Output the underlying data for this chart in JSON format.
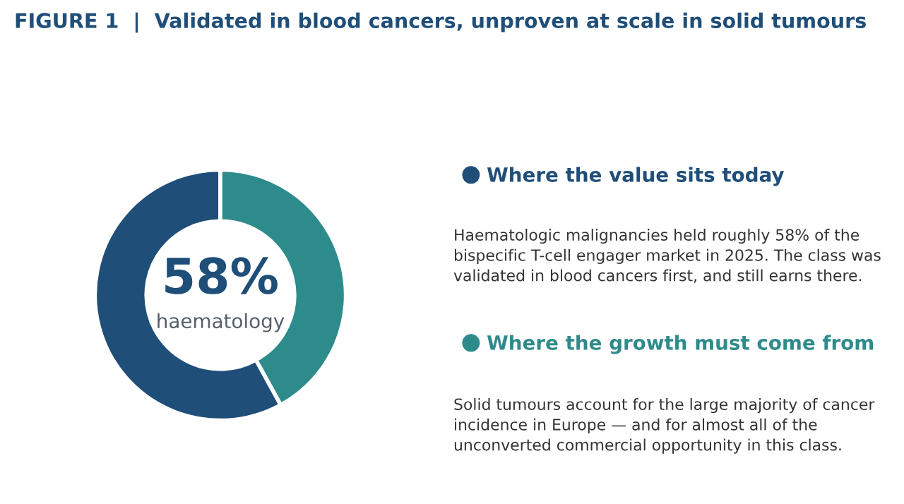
{
  "chart_data": {
    "type": "donut",
    "title": "FIGURE 1  |  Validated in blood cancers, unproven at scale in solid tumours",
    "categories": [
      "Where the value sits today",
      "Where the growth must come from"
    ],
    "values": [
      58,
      42
    ],
    "colors": [
      "#1f4e79",
      "#2e8b8b"
    ],
    "legend": "right",
    "annotations": [
      "58%",
      "haematology",
      "Haematologic malignancies held roughly 58% of the\nbispecific T-cell engager market in 2025. The class was\nvalidated in blood cancers first, and still earns there.",
      "Solid tumours account for the large majority of cancer\nincidence in Europe — and for almost all of the\nunconverted commercial opportunity in this class."
    ]
  }
}
